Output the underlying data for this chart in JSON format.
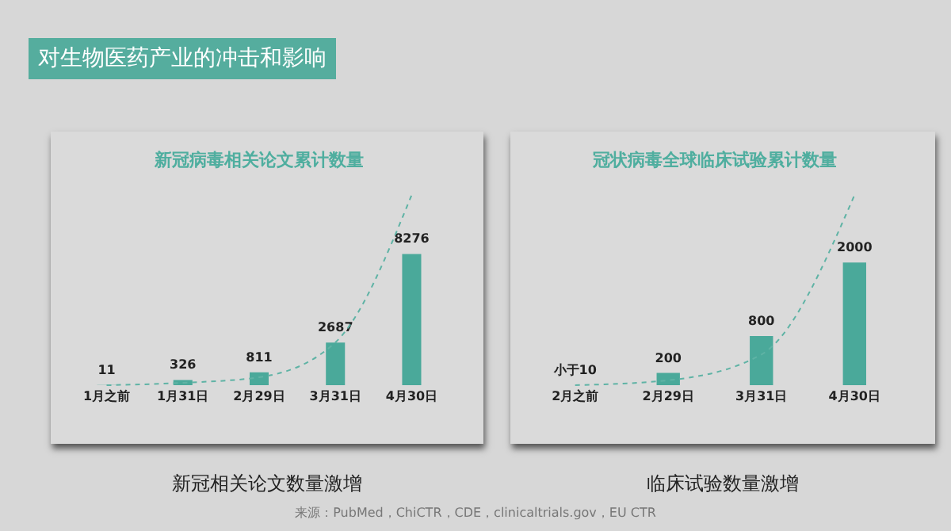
{
  "chart_data": [
    {
      "type": "bar",
      "title": "新冠病毒相关论文累计数量",
      "categories": [
        "1月之前",
        "1月31日",
        "2月29日",
        "3月31日",
        "4月30日"
      ],
      "series": [
        {
          "color": "#4aa99a",
          "values": [
            11,
            326,
            811,
            2687,
            8276
          ],
          "value_labels": [
            "11",
            "326",
            "811",
            "2687",
            "8276"
          ]
        },
        {
          "type": "line",
          "color": "#5fb3a5",
          "line_style": "dashed",
          "values": [
            0,
            150,
            500,
            2700,
            12000
          ]
        }
      ],
      "annotations": [
        "对生物医药产业的冲击和影响",
        "新冠相关论文数量激增"
      ]
    },
    {
      "type": "bar",
      "title": "冠状病毒全球临床试验累计数量",
      "categories": [
        "2月之前",
        "2月29日",
        "3月31日",
        "4月30日"
      ],
      "series": [
        {
          "color": "#4aa99a",
          "values": [
            null,
            200,
            800,
            2000
          ],
          "value_labels": [
            "小于10",
            "200",
            "800",
            "2000"
          ]
        },
        {
          "type": "line",
          "color": "#5fb3a5",
          "line_style": "dashed",
          "values": [
            0,
            80,
            500,
            3100
          ]
        }
      ],
      "annotations": [
        "临床试验数量激增",
        "来源：PubMed，ChiCTR，CDE，clinicaltrials.gov，EU CTR"
      ]
    }
  ]
}
